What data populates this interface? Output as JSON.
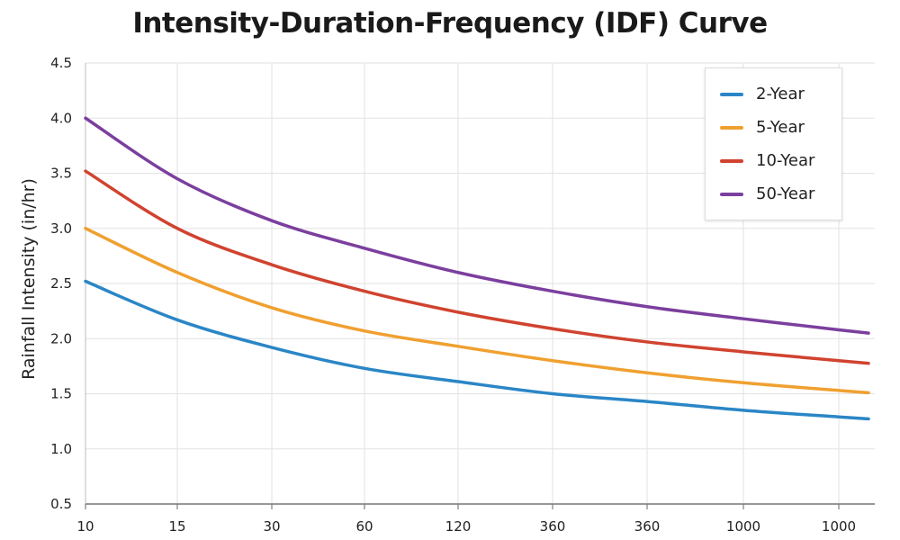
{
  "chart_data": {
    "type": "line",
    "title": "Intensity-Duration-Frequency (IDF) Curve",
    "xlabel": "",
    "ylabel": "Rainfall Intensity (in/hr)",
    "categories": [
      "10",
      "15",
      "30",
      "60",
      "120",
      "360",
      "360",
      "1000",
      "1000"
    ],
    "yticks": [
      "0.5",
      "1.0",
      "1.5",
      "2.0",
      "2.5",
      "3.0",
      "3.5",
      "4.0",
      "4.5"
    ],
    "ylim": [
      0.5,
      4.5
    ],
    "grid": true,
    "legend_position": "top-right",
    "series": [
      {
        "name": "2-Year",
        "color": "#2a86c6",
        "values": [
          2.52,
          2.17,
          1.92,
          1.73,
          1.61,
          1.5,
          1.43,
          1.35,
          1.29
        ]
      },
      {
        "name": "5-Year",
        "color": "#f0a030",
        "values": [
          3.0,
          2.6,
          2.28,
          2.07,
          1.93,
          1.8,
          1.69,
          1.6,
          1.53
        ]
      },
      {
        "name": "10-Year",
        "color": "#d0432f",
        "values": [
          3.52,
          3.0,
          2.67,
          2.43,
          2.24,
          2.09,
          1.97,
          1.88,
          1.8
        ]
      },
      {
        "name": "50-Year",
        "color": "#7b3f9e",
        "values": [
          4.0,
          3.45,
          3.07,
          2.82,
          2.6,
          2.43,
          2.29,
          2.18,
          2.08
        ]
      }
    ]
  }
}
